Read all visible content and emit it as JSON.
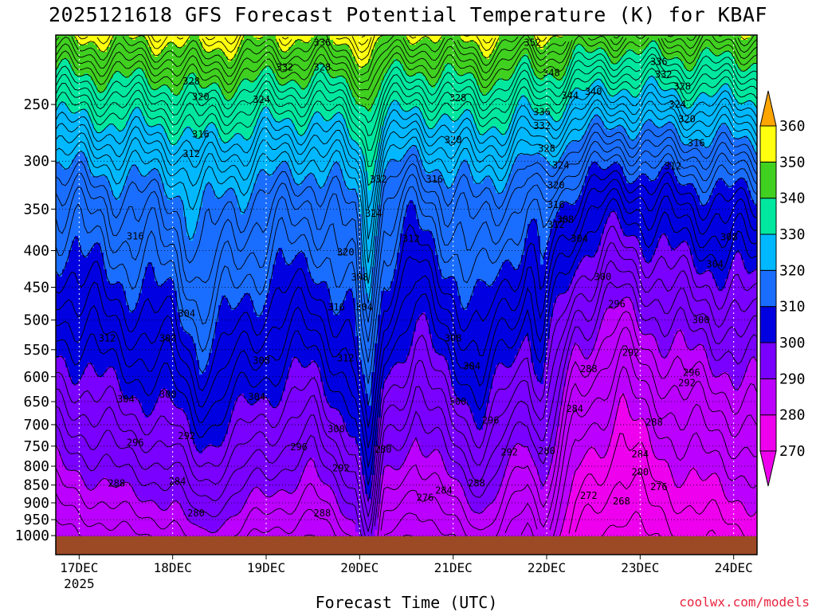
{
  "chart_data": {
    "type": "heatmap",
    "title": "2025121618 GFS Forecast Potential Temperature (K) for KBAF",
    "xlabel": "Forecast Time (UTC)",
    "ylabel": "",
    "x_ticks": [
      {
        "label": "17DEC",
        "sub": "2025",
        "day": 0
      },
      {
        "label": "18DEC",
        "sub": "",
        "day": 1
      },
      {
        "label": "19DEC",
        "sub": "",
        "day": 2
      },
      {
        "label": "20DEC",
        "sub": "",
        "day": 3
      },
      {
        "label": "21DEC",
        "sub": "",
        "day": 4
      },
      {
        "label": "22DEC",
        "sub": "",
        "day": 5
      },
      {
        "label": "23DEC",
        "sub": "",
        "day": 6
      },
      {
        "label": "24DEC",
        "sub": "",
        "day": 7
      }
    ],
    "xlim_days": [
      -0.25,
      7.25
    ],
    "y_ticks": [
      250,
      300,
      350,
      400,
      450,
      500,
      550,
      600,
      650,
      700,
      750,
      800,
      850,
      900,
      950,
      1000
    ],
    "ylim": [
      1020,
      200
    ],
    "y_scale": "log-pressure",
    "colorbar": {
      "levels": [
        270,
        280,
        290,
        300,
        310,
        320,
        330,
        340,
        350,
        360
      ],
      "colors": [
        "#ff00ff",
        "#c800ff",
        "#8a00ff",
        "#0000ff",
        "#0000c8",
        "#1874ff",
        "#00aaff",
        "#22e8ff",
        "#00ff9a",
        "#48e800",
        "#ffff00",
        "#ffa800",
        "#ff8000"
      ],
      "band_colors": [
        "#ee00ee",
        "#bb00ff",
        "#7a00ff",
        "#0000e0",
        "#1a6eff",
        "#00b8ff",
        "#00e8a0",
        "#40d020",
        "#ffff10",
        "#ffa500"
      ],
      "extend": "both"
    },
    "contour_interval_K": 2,
    "ground_color": "#9c4a26",
    "profile_samples": {
      "days": [
        -0.25,
        0.5,
        1.0,
        1.3,
        1.8,
        2.5,
        2.95,
        3.1,
        3.25,
        3.6,
        4.3,
        4.8,
        4.95,
        5.3,
        5.8,
        6.1,
        6.5,
        7.25
      ],
      "shift_K": [
        0,
        3,
        4,
        8,
        4,
        1,
        6,
        14,
        2,
        -2,
        5,
        -2,
        2,
        -8,
        -12,
        -10,
        -8,
        -6
      ]
    },
    "contour_labels": [
      {
        "value": "336",
        "day": 2.6,
        "p": 205
      },
      {
        "value": "332",
        "day": 2.2,
        "p": 222
      },
      {
        "value": "328",
        "day": 2.6,
        "p": 222
      },
      {
        "value": "328",
        "day": 1.2,
        "p": 232
      },
      {
        "value": "324",
        "day": 1.95,
        "p": 246
      },
      {
        "value": "320",
        "day": 1.3,
        "p": 244
      },
      {
        "value": "316",
        "day": 1.3,
        "p": 275
      },
      {
        "value": "312",
        "day": 1.2,
        "p": 293
      },
      {
        "value": "316",
        "day": 0.6,
        "p": 382
      },
      {
        "value": "312",
        "day": 0.3,
        "p": 530
      },
      {
        "value": "308",
        "day": 0.95,
        "p": 530
      },
      {
        "value": "304",
        "day": 1.15,
        "p": 490
      },
      {
        "value": "304",
        "day": 0.5,
        "p": 645
      },
      {
        "value": "300",
        "day": 0.95,
        "p": 635
      },
      {
        "value": "308",
        "day": 1.95,
        "p": 570
      },
      {
        "value": "304",
        "day": 1.9,
        "p": 640
      },
      {
        "value": "320",
        "day": 2.85,
        "p": 402
      },
      {
        "value": "316",
        "day": 2.75,
        "p": 480
      },
      {
        "value": "312",
        "day": 2.85,
        "p": 565
      },
      {
        "value": "308",
        "day": 3.0,
        "p": 436
      },
      {
        "value": "304",
        "day": 3.05,
        "p": 480
      },
      {
        "value": "332",
        "day": 3.2,
        "p": 318
      },
      {
        "value": "324",
        "day": 3.15,
        "p": 355
      },
      {
        "value": "312",
        "day": 3.55,
        "p": 385
      },
      {
        "value": "328",
        "day": 4.05,
        "p": 245
      },
      {
        "value": "320",
        "day": 4.0,
        "p": 280
      },
      {
        "value": "316",
        "day": 3.8,
        "p": 318
      },
      {
        "value": "308",
        "day": 4.0,
        "p": 530
      },
      {
        "value": "304",
        "day": 4.2,
        "p": 580
      },
      {
        "value": "300",
        "day": 4.05,
        "p": 650
      },
      {
        "value": "296",
        "day": 4.4,
        "p": 690
      },
      {
        "value": "292",
        "day": 4.6,
        "p": 765
      },
      {
        "value": "300",
        "day": 2.75,
        "p": 710
      },
      {
        "value": "296",
        "day": 2.35,
        "p": 752
      },
      {
        "value": "296",
        "day": 0.6,
        "p": 742
      },
      {
        "value": "292",
        "day": 1.15,
        "p": 726
      },
      {
        "value": "288",
        "day": 0.4,
        "p": 845
      },
      {
        "value": "284",
        "day": 1.05,
        "p": 840
      },
      {
        "value": "280",
        "day": 1.25,
        "p": 930
      },
      {
        "value": "288",
        "day": 2.6,
        "p": 930
      },
      {
        "value": "292",
        "day": 2.8,
        "p": 805
      },
      {
        "value": "280",
        "day": 3.25,
        "p": 758
      },
      {
        "value": "276",
        "day": 3.7,
        "p": 885
      },
      {
        "value": "284",
        "day": 3.9,
        "p": 865
      },
      {
        "value": "288",
        "day": 4.25,
        "p": 845
      },
      {
        "value": "280",
        "day": 5.0,
        "p": 762
      },
      {
        "value": "284",
        "day": 5.3,
        "p": 665
      },
      {
        "value": "288",
        "day": 5.45,
        "p": 585
      },
      {
        "value": "292",
        "day": 5.9,
        "p": 555
      },
      {
        "value": "296",
        "day": 5.75,
        "p": 475
      },
      {
        "value": "300",
        "day": 5.6,
        "p": 435
      },
      {
        "value": "304",
        "day": 5.35,
        "p": 385
      },
      {
        "value": "308",
        "day": 5.2,
        "p": 362
      },
      {
        "value": "312",
        "day": 5.1,
        "p": 368
      },
      {
        "value": "316",
        "day": 5.1,
        "p": 345
      },
      {
        "value": "320",
        "day": 5.1,
        "p": 324
      },
      {
        "value": "324",
        "day": 5.15,
        "p": 304
      },
      {
        "value": "328",
        "day": 5.0,
        "p": 288
      },
      {
        "value": "332",
        "day": 4.95,
        "p": 268
      },
      {
        "value": "336",
        "day": 4.95,
        "p": 256
      },
      {
        "value": "344",
        "day": 5.25,
        "p": 243
      },
      {
        "value": "340",
        "day": 5.5,
        "p": 240
      },
      {
        "value": "348",
        "day": 5.05,
        "p": 226
      },
      {
        "value": "352",
        "day": 4.85,
        "p": 205
      },
      {
        "value": "336",
        "day": 6.2,
        "p": 218
      },
      {
        "value": "332",
        "day": 6.25,
        "p": 227
      },
      {
        "value": "328",
        "day": 6.45,
        "p": 236
      },
      {
        "value": "324",
        "day": 6.4,
        "p": 250
      },
      {
        "value": "320",
        "day": 6.5,
        "p": 262
      },
      {
        "value": "316",
        "day": 6.6,
        "p": 283
      },
      {
        "value": "312",
        "day": 6.35,
        "p": 305
      },
      {
        "value": "308",
        "day": 6.95,
        "p": 383
      },
      {
        "value": "304",
        "day": 6.8,
        "p": 418
      },
      {
        "value": "300",
        "day": 6.65,
        "p": 500
      },
      {
        "value": "296",
        "day": 6.55,
        "p": 592
      },
      {
        "value": "292",
        "day": 6.5,
        "p": 612
      },
      {
        "value": "288",
        "day": 6.15,
        "p": 695
      },
      {
        "value": "284",
        "day": 6.0,
        "p": 770
      },
      {
        "value": "280",
        "day": 6.0,
        "p": 815
      },
      {
        "value": "276",
        "day": 6.2,
        "p": 855
      },
      {
        "value": "272",
        "day": 5.45,
        "p": 880
      },
      {
        "value": "268",
        "day": 5.8,
        "p": 895
      }
    ]
  }
}
